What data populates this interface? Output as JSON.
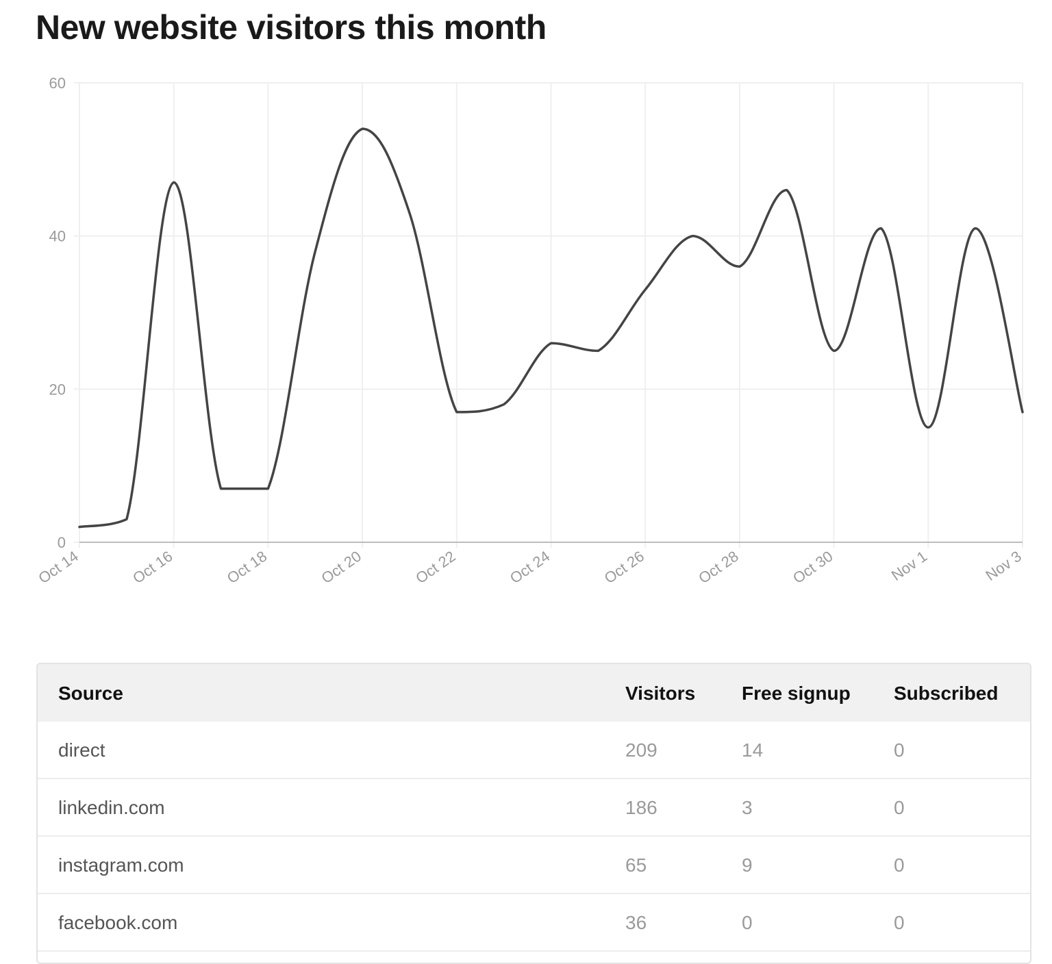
{
  "page": {
    "title": "New website visitors this month"
  },
  "chart_data": {
    "type": "line",
    "title": "New website visitors this month",
    "xlabel": "",
    "ylabel": "",
    "ylim": [
      0,
      60
    ],
    "yticks": [
      0,
      20,
      40,
      60
    ],
    "grid": true,
    "x": [
      "Oct 14",
      "Oct 15",
      "Oct 16",
      "Oct 17",
      "Oct 18",
      "Oct 19",
      "Oct 20",
      "Oct 21",
      "Oct 22",
      "Oct 23",
      "Oct 24",
      "Oct 25",
      "Oct 26",
      "Oct 27",
      "Oct 28",
      "Oct 29",
      "Oct 30",
      "Oct 31",
      "Nov 1",
      "Nov 2",
      "Nov 3"
    ],
    "xtick_labels": [
      "Oct 14",
      "Oct 16",
      "Oct 18",
      "Oct 20",
      "Oct 22",
      "Oct 24",
      "Oct 26",
      "Oct 28",
      "Oct 30",
      "Nov 1",
      "Nov 3"
    ],
    "series": [
      {
        "name": "",
        "values": [
          2,
          3,
          47,
          7,
          7,
          38,
          54,
          43,
          17,
          18,
          26,
          25,
          33,
          40,
          36,
          46,
          25,
          41,
          15,
          41,
          17
        ],
        "color": "#444444"
      }
    ]
  },
  "table": {
    "columns": [
      "Source",
      "Visitors",
      "Free signup",
      "Subscribed"
    ],
    "rows": [
      {
        "source": "direct",
        "visitors": "209",
        "free_signup": "14",
        "subscribed": "0"
      },
      {
        "source": "linkedin.com",
        "visitors": "186",
        "free_signup": "3",
        "subscribed": "0"
      },
      {
        "source": "instagram.com",
        "visitors": "65",
        "free_signup": "9",
        "subscribed": "0"
      },
      {
        "source": "facebook.com",
        "visitors": "36",
        "free_signup": "0",
        "subscribed": "0"
      }
    ]
  },
  "colors": {
    "line": "#444444",
    "grid": "#efefef",
    "axis": "#bdbdbd",
    "tick_label": "#9a9a9a",
    "header_bg": "#f1f1f1"
  }
}
